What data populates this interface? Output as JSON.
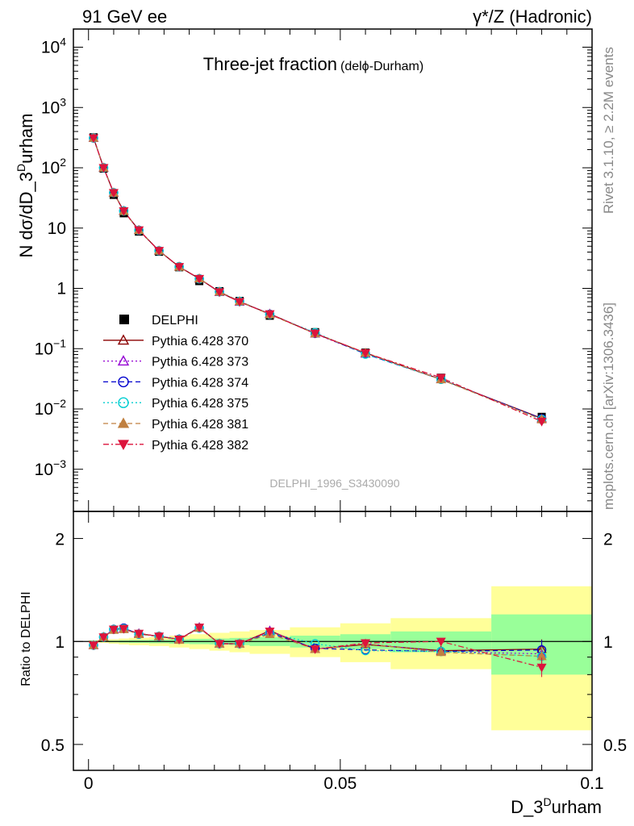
{
  "header": {
    "left": "91 GeV ee",
    "right": "γ*/Z (Hadronic)"
  },
  "side_labels": {
    "upper": "Rivet 3.1.10, ≥ 2.2M events",
    "lower": "mcplots.cern.ch [arXiv:1306.3436]"
  },
  "chart_data": [
    {
      "type": "line",
      "panel": "main",
      "title": "Three-jet fraction",
      "subtitle": "(delϕ-Durham)",
      "watermark": "DELPHI_1996_S3430090",
      "xlabel_base": "D_3",
      "xlabel_sup": "D",
      "xlabel_tail": "urham",
      "ylabel_base": "N dσ/dD_3",
      "ylabel_sup": "D",
      "ylabel_tail": "urham",
      "log_y": true,
      "xlim": [
        -0.003,
        0.1
      ],
      "ylim": [
        0.0002,
        20000
      ],
      "x_ticks": [
        "0",
        "0.05",
        "0.1"
      ],
      "y_ticks": [
        "10^-3",
        "10^-2",
        "10^-1",
        "1",
        "10",
        "10^2",
        "10^3",
        "10^4"
      ],
      "legend_position": "left-middle",
      "x": [
        0.001,
        0.003,
        0.005,
        0.007,
        0.01,
        0.014,
        0.018,
        0.022,
        0.026,
        0.03,
        0.036,
        0.045,
        0.055,
        0.07,
        0.09
      ],
      "series": [
        {
          "name": "DELPHI",
          "color": "#000000",
          "marker": "square-filled",
          "style": "data",
          "values": [
            320,
            97,
            35.5,
            17.6,
            8.75,
            4.05,
            2.24,
            1.32,
            0.9,
            0.62,
            0.352,
            0.188,
            0.086,
            0.033,
            0.0074
          ]
        },
        {
          "name": "Pythia 6.428 370",
          "color": "#8b0000",
          "marker": "triangle-up-open",
          "style": "solid",
          "values": [
            312,
            100,
            38.5,
            19.2,
            9.25,
            4.22,
            2.28,
            1.45,
            0.87,
            0.6,
            0.378,
            0.178,
            0.085,
            0.031,
            0.007
          ]
        },
        {
          "name": "Pythia 6.428 373",
          "color": "#9400d3",
          "marker": "triangle-up-open",
          "style": "dotted",
          "values": [
            312,
            100,
            38.6,
            19.2,
            9.25,
            4.2,
            2.28,
            1.45,
            0.87,
            0.6,
            0.378,
            0.177,
            0.082,
            0.0312,
            0.0068
          ]
        },
        {
          "name": "Pythia 6.428 374",
          "color": "#0000cd",
          "marker": "circle-open",
          "style": "dashed",
          "values": [
            312,
            100,
            38.6,
            19.3,
            9.2,
            4.2,
            2.28,
            1.44,
            0.88,
            0.61,
            0.372,
            0.18,
            0.082,
            0.031,
            0.0069
          ]
        },
        {
          "name": "Pythia 6.428 375",
          "color": "#00ced1",
          "marker": "circle-open",
          "style": "dotted",
          "values": [
            312,
            100,
            38.6,
            19.2,
            9.2,
            4.2,
            2.28,
            1.44,
            0.88,
            0.61,
            0.37,
            0.185,
            0.081,
            0.031,
            0.0067
          ]
        },
        {
          "name": "Pythia 6.428 381",
          "color": "#c08040",
          "marker": "triangle-up-filled",
          "style": "dashed",
          "values": [
            312,
            100,
            38.5,
            19.1,
            9.2,
            4.2,
            2.27,
            1.45,
            0.88,
            0.61,
            0.37,
            0.178,
            0.085,
            0.0308,
            0.0067
          ]
        },
        {
          "name": "Pythia 6.428 382",
          "color": "#dc143c",
          "marker": "triangle-down-filled",
          "style": "dashdot",
          "values": [
            312,
            100,
            38.5,
            19.2,
            9.25,
            4.22,
            2.28,
            1.45,
            0.87,
            0.6,
            0.377,
            0.179,
            0.085,
            0.033,
            0.0062
          ]
        }
      ]
    },
    {
      "type": "line",
      "panel": "ratio",
      "ylabel": "Ratio to DELPHI",
      "log_y": true,
      "xlim": [
        -0.003,
        0.1
      ],
      "ylim": [
        0.42,
        2.4
      ],
      "y_ticks_left": [
        "0.5",
        "1",
        "2"
      ],
      "y_ticks_right": [
        "0.5",
        "1",
        "2"
      ],
      "x_ticks": [
        "0",
        "0.05",
        "0.1"
      ],
      "reference": 1,
      "bands": {
        "bins": [
          [
            0,
            0.002
          ],
          [
            0.002,
            0.004
          ],
          [
            0.004,
            0.006
          ],
          [
            0.006,
            0.008
          ],
          [
            0.008,
            0.012
          ],
          [
            0.012,
            0.016
          ],
          [
            0.016,
            0.02
          ],
          [
            0.02,
            0.024
          ],
          [
            0.024,
            0.028
          ],
          [
            0.028,
            0.032
          ],
          [
            0.032,
            0.04
          ],
          [
            0.04,
            0.05
          ],
          [
            0.05,
            0.06
          ],
          [
            0.06,
            0.08
          ],
          [
            0.08,
            0.1
          ]
        ],
        "inner_color": "#99ff99",
        "outer_color": "#ffff99",
        "inner_half_width": [
          0.004,
          0.004,
          0.006,
          0.008,
          0.01,
          0.012,
          0.015,
          0.018,
          0.02,
          0.024,
          0.03,
          0.04,
          0.05,
          0.07,
          0.2
        ],
        "outer_half_width": [
          0.008,
          0.01,
          0.015,
          0.02,
          0.025,
          0.03,
          0.04,
          0.05,
          0.06,
          0.07,
          0.08,
          0.1,
          0.13,
          0.17,
          0.45
        ]
      },
      "x": [
        0.001,
        0.003,
        0.005,
        0.007,
        0.01,
        0.014,
        0.018,
        0.022,
        0.026,
        0.03,
        0.036,
        0.045,
        0.055,
        0.07,
        0.09
      ],
      "series": [
        {
          "name": "Pythia 6.428 370",
          "color": "#8b0000",
          "marker": "triangle-up-open",
          "style": "solid",
          "values": [
            0.975,
            1.03,
            1.085,
            1.09,
            1.055,
            1.035,
            1.015,
            1.1,
            0.985,
            0.985,
            1.075,
            0.95,
            0.98,
            0.94,
            0.95
          ]
        },
        {
          "name": "Pythia 6.428 373",
          "color": "#9400d3",
          "marker": "triangle-up-open",
          "style": "dotted",
          "values": [
            0.975,
            1.03,
            1.085,
            1.09,
            1.055,
            1.035,
            1.015,
            1.1,
            0.985,
            0.985,
            1.075,
            0.95,
            0.985,
            0.935,
            0.92
          ]
        },
        {
          "name": "Pythia 6.428 374",
          "color": "#0000cd",
          "marker": "circle-open",
          "style": "dashed",
          "values": [
            0.975,
            1.03,
            1.085,
            1.095,
            1.05,
            1.035,
            1.015,
            1.095,
            0.985,
            0.985,
            1.06,
            0.955,
            0.945,
            0.935,
            0.945
          ]
        },
        {
          "name": "Pythia 6.428 375",
          "color": "#00ced1",
          "marker": "circle-open",
          "style": "dotted",
          "values": [
            0.975,
            1.03,
            1.085,
            1.09,
            1.05,
            1.035,
            1.015,
            1.095,
            0.985,
            0.985,
            1.06,
            0.985,
            0.94,
            0.935,
            0.905
          ]
        },
        {
          "name": "Pythia 6.428 381",
          "color": "#c08040",
          "marker": "triangle-up-filled",
          "style": "dashed",
          "values": [
            0.975,
            1.03,
            1.08,
            1.085,
            1.05,
            1.035,
            1.01,
            1.095,
            0.985,
            0.985,
            1.05,
            0.95,
            0.985,
            0.93,
            0.905
          ]
        },
        {
          "name": "Pythia 6.428 382",
          "color": "#dc143c",
          "marker": "triangle-down-filled",
          "style": "dashdot",
          "values": [
            0.975,
            1.03,
            1.085,
            1.09,
            1.055,
            1.035,
            1.015,
            1.1,
            0.985,
            0.985,
            1.07,
            0.95,
            0.99,
            1.0,
            0.84
          ]
        }
      ]
    }
  ]
}
